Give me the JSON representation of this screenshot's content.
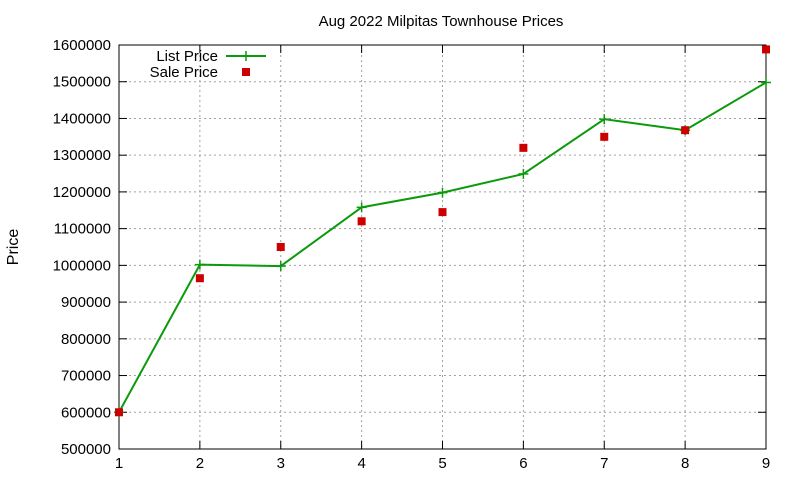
{
  "chart_data": {
    "type": "line",
    "title": "Aug 2022 Milpitas Townhouse Prices",
    "xlabel": "",
    "ylabel": "Price",
    "xlim": [
      1,
      9
    ],
    "ylim": [
      500000,
      1600000
    ],
    "x_ticks": [
      1,
      2,
      3,
      4,
      5,
      6,
      7,
      8,
      9
    ],
    "y_ticks": [
      500000,
      600000,
      700000,
      800000,
      900000,
      1000000,
      1100000,
      1200000,
      1300000,
      1400000,
      1500000,
      1600000
    ],
    "grid": true,
    "legend_position": "top-left",
    "series": [
      {
        "name": "List Price",
        "style": "line+cross",
        "color": "#0a9a0a",
        "x": [
          1,
          2,
          3,
          4,
          5,
          6,
          7,
          8,
          9
        ],
        "y": [
          600000,
          1002000,
          998000,
          1158000,
          1198000,
          1249000,
          1398000,
          1368000,
          1498000
        ]
      },
      {
        "name": "Sale Price",
        "style": "square",
        "color": "#cc0000",
        "x": [
          1,
          2,
          3,
          4,
          5,
          6,
          7,
          8,
          9
        ],
        "y": [
          600000,
          965000,
          1050000,
          1120000,
          1145000,
          1320000,
          1350000,
          1368000,
          1588000
        ]
      }
    ]
  }
}
